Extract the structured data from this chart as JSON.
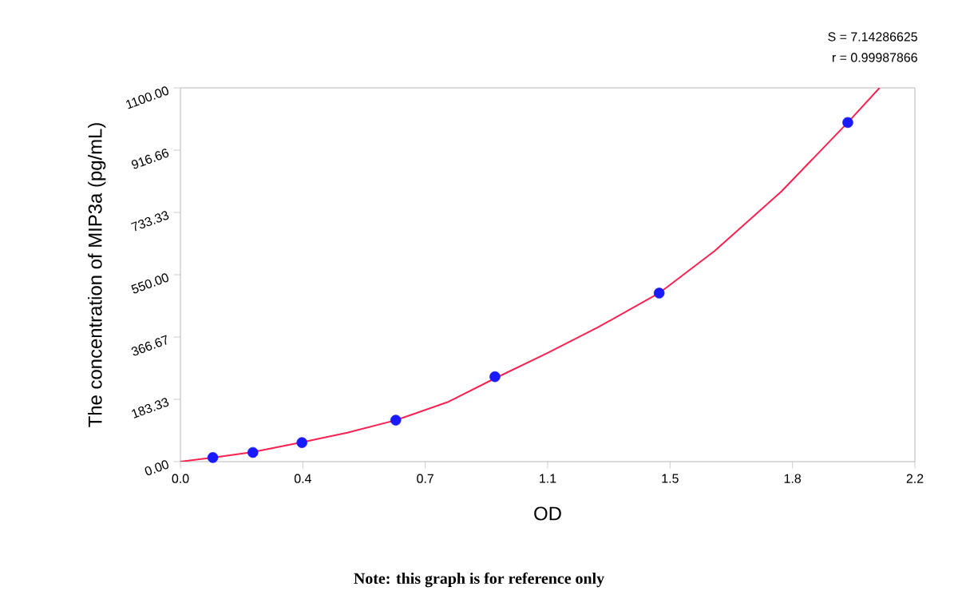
{
  "chart_data": {
    "type": "scatter",
    "xlabel": "OD",
    "ylabel": "The concentration of MIP3a (pg/mL)",
    "annotations": [
      "S = 7.14286625",
      "r = 0.99987866",
      "Note: this graph is for reference only"
    ],
    "series": [
      {
        "color": "#1a1aff",
        "marker": "circle",
        "x": [
          0.097,
          0.217,
          0.364,
          0.645,
          0.942,
          1.434,
          1.999
        ],
        "values": [
          12,
          27,
          56,
          122,
          250,
          496,
          998
        ]
      },
      {
        "type": "line",
        "color": "#ff2050",
        "marker": "none",
        "x": [
          0,
          0.097,
          0.217,
          0.364,
          0.5,
          0.645,
          0.8,
          0.942,
          1.1,
          1.25,
          1.434,
          1.6,
          1.8,
          1.999,
          2.094
        ],
        "values": [
          0,
          12,
          28,
          57,
          85,
          122,
          175,
          245,
          320,
          395,
          496,
          620,
          795,
          998,
          1100
        ]
      }
    ],
    "xlim": [
      0,
      2.2
    ],
    "ylim": [
      0,
      1100
    ],
    "xticks": [
      {
        "value": 0,
        "label": "0.0"
      },
      {
        "value": 0.3667,
        "label": "0.4"
      },
      {
        "value": 0.7333,
        "label": "0.7"
      },
      {
        "value": 1.1,
        "label": "1.1"
      },
      {
        "value": 1.4667,
        "label": "1.5"
      },
      {
        "value": 1.8333,
        "label": "1.8"
      },
      {
        "value": 2.2,
        "label": "2.2"
      }
    ],
    "yticks": [
      {
        "value": 0,
        "label": "0.00"
      },
      {
        "value": 183.333,
        "label": "183.33"
      },
      {
        "value": 366.667,
        "label": "366.67"
      },
      {
        "value": 550,
        "label": "550.00"
      },
      {
        "value": 733.333,
        "label": "733.33"
      },
      {
        "value": 916.66,
        "label": "916.66"
      },
      {
        "value": 1100,
        "label": "1100.00"
      }
    ],
    "grid": false
  }
}
